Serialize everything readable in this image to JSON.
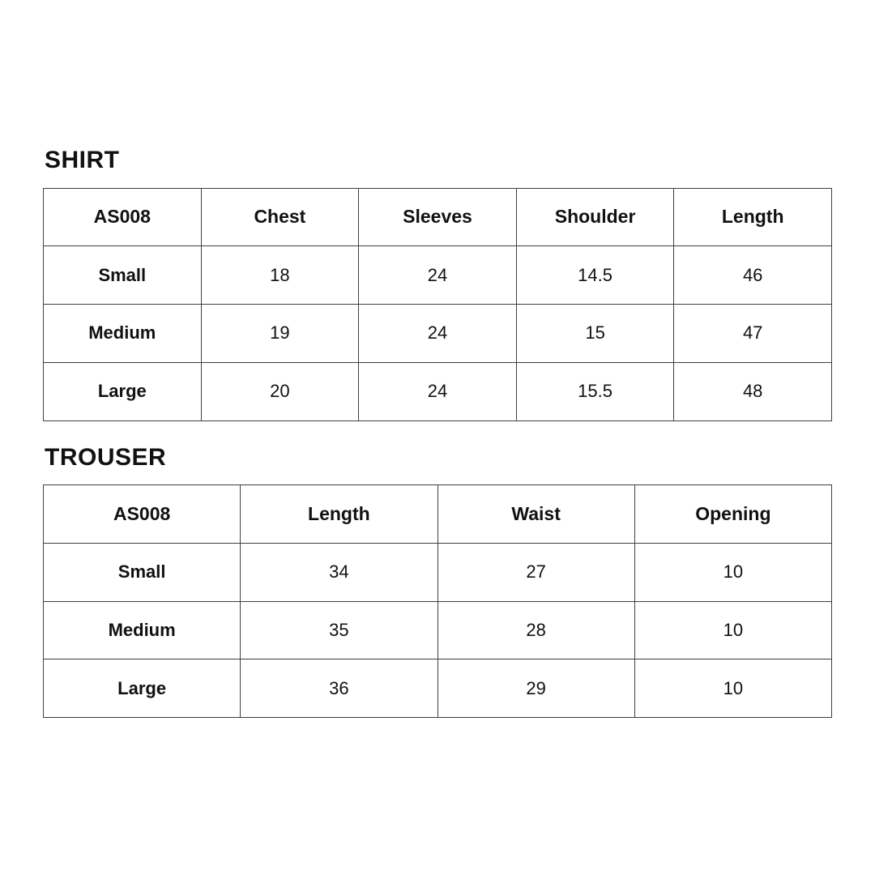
{
  "page": {
    "background_color": "#ffffff",
    "text_color": "#111111",
    "border_color": "#3f3f3f"
  },
  "sections": [
    {
      "title": "SHIRT",
      "table": {
        "columns": [
          "AS008",
          "Chest",
          "Sleeves",
          "Shoulder",
          "Length"
        ],
        "rows": [
          [
            "Small",
            "18",
            "24",
            "14.5",
            "46"
          ],
          [
            "Medium",
            "19",
            "24",
            "15",
            "47"
          ],
          [
            "Large",
            "20",
            "24",
            "15.5",
            "48"
          ]
        ]
      }
    },
    {
      "title": "TROUSER",
      "table": {
        "columns": [
          "AS008",
          "Length",
          "Waist",
          "Opening"
        ],
        "rows": [
          [
            "Small",
            "34",
            "27",
            "10"
          ],
          [
            "Medium",
            "35",
            "28",
            "10"
          ],
          [
            "Large",
            "36",
            "29",
            "10"
          ]
        ]
      }
    }
  ]
}
